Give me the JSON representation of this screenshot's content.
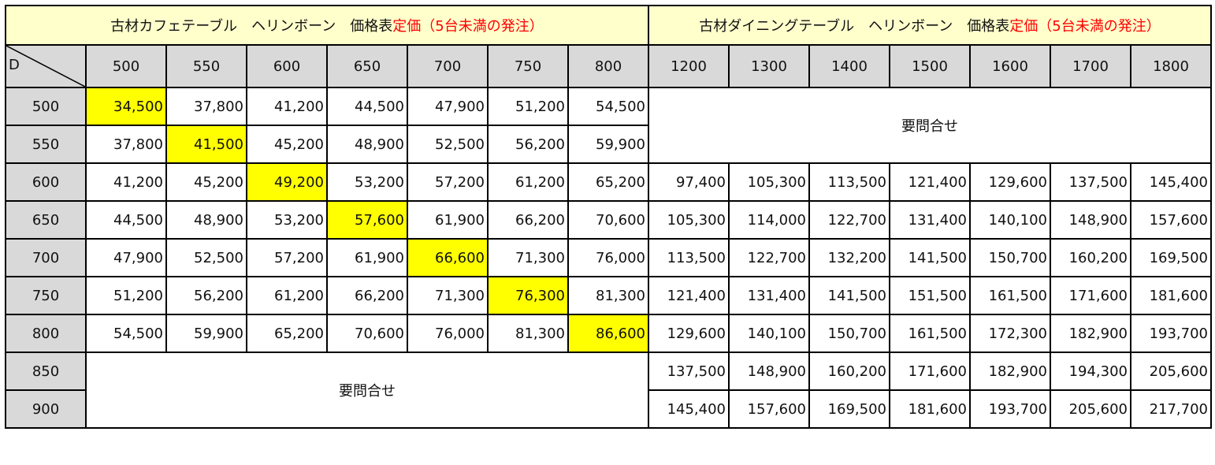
{
  "header": {
    "cafe": {
      "title": "古材カフェテーブル　ヘリンボーン　価格表",
      "price_note": "定価（5台未満の発注）"
    },
    "dining": {
      "title": "古材ダイニングテーブル　ヘリンボーン　価格表",
      "price_note": "定価（5台未満の発注）"
    }
  },
  "corner_label": "D",
  "cafe_widths": [
    "500",
    "550",
    "600",
    "650",
    "700",
    "750",
    "800"
  ],
  "dining_widths": [
    "1200",
    "1300",
    "1400",
    "1500",
    "1600",
    "1700",
    "1800"
  ],
  "depths": [
    "500",
    "550",
    "600",
    "650",
    "700",
    "750",
    "800",
    "850",
    "900"
  ],
  "inquiry_text": "要問合せ",
  "highlight_color": "#ffff00",
  "cafe_prices": [
    [
      "34,500",
      "37,800",
      "41,200",
      "44,500",
      "47,900",
      "51,200",
      "54,500"
    ],
    [
      "37,800",
      "41,500",
      "45,200",
      "48,900",
      "52,500",
      "56,200",
      "59,900"
    ],
    [
      "41,200",
      "45,200",
      "49,200",
      "53,200",
      "57,200",
      "61,200",
      "65,200"
    ],
    [
      "44,500",
      "48,900",
      "53,200",
      "57,600",
      "61,900",
      "66,200",
      "70,600"
    ],
    [
      "47,900",
      "52,500",
      "57,200",
      "61,900",
      "66,600",
      "71,300",
      "76,000"
    ],
    [
      "51,200",
      "56,200",
      "61,200",
      "66,200",
      "71,300",
      "76,300",
      "81,300"
    ],
    [
      "54,500",
      "59,900",
      "65,200",
      "70,600",
      "76,000",
      "81,300",
      "86,600"
    ]
  ],
  "dining_prices": [
    [
      "97,400",
      "105,300",
      "113,500",
      "121,400",
      "129,600",
      "137,500",
      "145,400"
    ],
    [
      "105,300",
      "114,000",
      "122,700",
      "131,400",
      "140,100",
      "148,900",
      "157,600"
    ],
    [
      "113,500",
      "122,700",
      "132,200",
      "141,500",
      "150,700",
      "160,200",
      "169,500"
    ],
    [
      "121,400",
      "131,400",
      "141,500",
      "151,500",
      "161,500",
      "171,600",
      "181,600"
    ],
    [
      "129,600",
      "140,100",
      "150,700",
      "161,500",
      "172,300",
      "182,900",
      "193,700"
    ],
    [
      "137,500",
      "148,900",
      "160,200",
      "171,600",
      "182,900",
      "194,300",
      "205,600"
    ],
    [
      "145,400",
      "157,600",
      "169,500",
      "181,600",
      "193,700",
      "205,600",
      "217,700"
    ]
  ]
}
